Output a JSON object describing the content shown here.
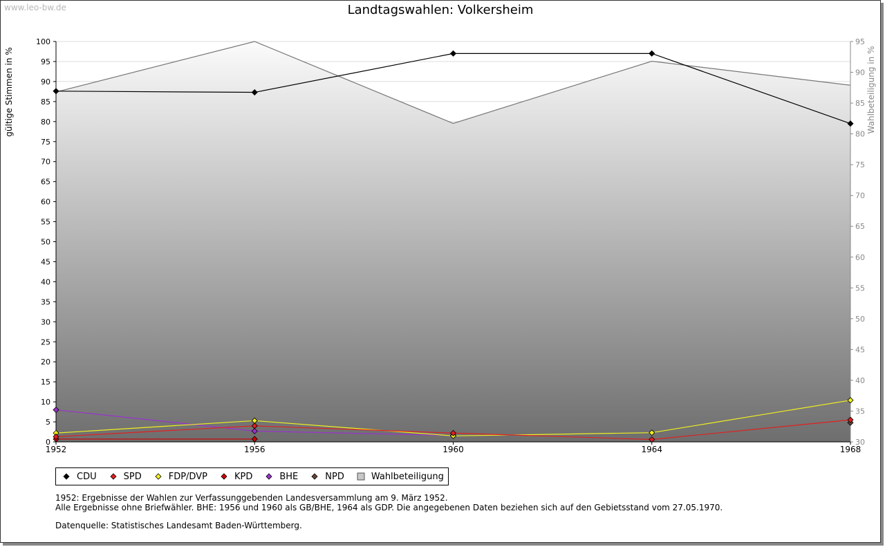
{
  "watermark": "www.leo-bw.de",
  "footnotes": {
    "line1": "1952: Ergebnisse der Wahlen zur Verfassunggebenden Landesversammlung am 9. März 1952.",
    "line2": "Alle Ergebnisse ohne Briefwähler. BHE: 1956 und 1960 als GB/BHE, 1964 als GDP. Die angegebenen Daten beziehen sich auf den Gebietsstand vom 27.05.1970.",
    "source": "Datenquelle: Statistisches Landesamt Baden-Württemberg."
  },
  "chart_data": {
    "type": "line",
    "title": "Landtagswahlen: Volkersheim",
    "ylabel": "gültige Stimmen in %",
    "y2label": "Wahlbeteiligung in %",
    "categories": [
      "1952",
      "1956",
      "1960",
      "1964",
      "1968"
    ],
    "ylim": [
      0,
      100
    ],
    "yticks": [
      0,
      5,
      10,
      15,
      20,
      25,
      30,
      35,
      40,
      45,
      50,
      55,
      60,
      65,
      70,
      75,
      80,
      85,
      90,
      95,
      100
    ],
    "y2lim": [
      30,
      95
    ],
    "y2ticks": [
      30,
      35,
      40,
      45,
      50,
      55,
      60,
      65,
      70,
      75,
      80,
      85,
      90,
      95
    ],
    "legend_position": "bottom-left",
    "series": [
      {
        "name": "CDU",
        "color": "#000000",
        "axis": "left",
        "values": [
          87.6,
          87.3,
          97.0,
          97.0,
          79.5
        ]
      },
      {
        "name": "SPD",
        "color": "#e02020",
        "axis": "left",
        "values": [
          1.3,
          4.0,
          2.2,
          0.6,
          5.5
        ]
      },
      {
        "name": "FDP/DVP",
        "color": "#f0f020",
        "axis": "left",
        "values": [
          2.2,
          5.3,
          1.5,
          2.3,
          10.4
        ]
      },
      {
        "name": "KPD",
        "color": "#cc0000",
        "axis": "left",
        "values": [
          0.7,
          0.7,
          null,
          null,
          null
        ]
      },
      {
        "name": "BHE",
        "color": "#9933cc",
        "axis": "left",
        "values": [
          8.0,
          2.7,
          1.6,
          null,
          null
        ]
      },
      {
        "name": "NPD",
        "color": "#664433",
        "axis": "left",
        "values": [
          null,
          null,
          null,
          null,
          4.8
        ]
      },
      {
        "name": "Wahlbeteiligung",
        "color": "#aaaaaa",
        "axis": "right",
        "type": "area",
        "values": [
          86.8,
          95.0,
          81.7,
          91.8,
          87.9
        ]
      }
    ]
  }
}
